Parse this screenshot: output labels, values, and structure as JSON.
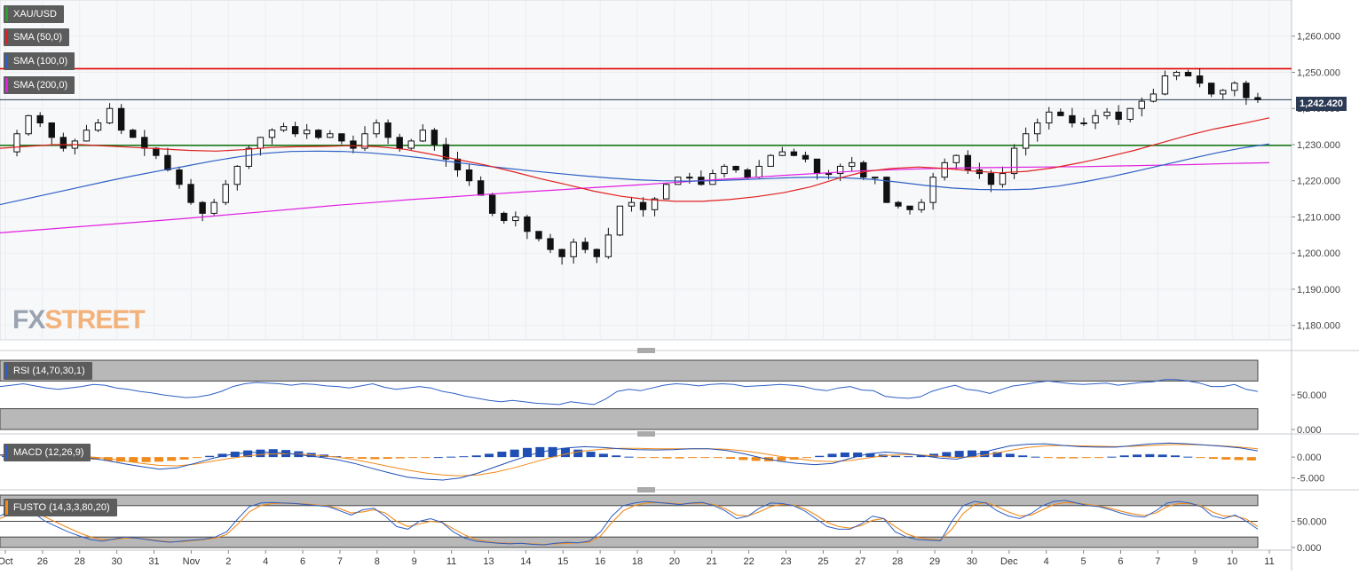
{
  "chart_data": [
    {
      "type": "candlestick",
      "symbol": "XAU/USD",
      "last_price_label": "1,242.420",
      "last_price": 1242.42,
      "ylim": [
        1176,
        1270
      ],
      "y_ticks": [
        "1,260.000",
        "1,250.000",
        "1,240.000",
        "1,230.000",
        "1,220.000",
        "1,210.000",
        "1,200.000",
        "1,190.000",
        "1,180.000"
      ],
      "y_tick_values": [
        1260,
        1250,
        1240,
        1230,
        1220,
        1210,
        1200,
        1190,
        1180
      ],
      "x_tick_labels": [
        "Oct",
        "26",
        "28",
        "30",
        "31",
        "Nov",
        "2",
        "4",
        "6",
        "7",
        "8",
        "9",
        "11",
        "13",
        "14",
        "15",
        "16",
        "18",
        "20",
        "21",
        "22",
        "23",
        "25",
        "27",
        "28",
        "29",
        "30",
        "Dec",
        "4",
        "5",
        "6",
        "7",
        "9",
        "10",
        "11"
      ],
      "indicators": [
        {
          "name": "SMA (50,0)",
          "color": "#e02020"
        },
        {
          "name": "SMA (100,0)",
          "color": "#2d5fc4"
        },
        {
          "name": "SMA (200,0)",
          "color": "#e020e0"
        }
      ],
      "horizontal_levels": [
        {
          "value": 1251,
          "color": "#e00000"
        },
        {
          "value": 1229.8,
          "color": "#1a7a1a"
        }
      ],
      "price_path": [
        1228,
        1233,
        1238,
        1236,
        1232,
        1229,
        1231,
        1234,
        1236,
        1240,
        1234,
        1232,
        1229,
        1227,
        1223,
        1219,
        1214,
        1211,
        1214,
        1219,
        1224,
        1229,
        1232,
        1234,
        1235,
        1233,
        1234,
        1232,
        1233,
        1231,
        1229,
        1233,
        1236,
        1232,
        1229,
        1231,
        1234,
        1230,
        1226,
        1223,
        1220,
        1216,
        1211,
        1209,
        1210,
        1206,
        1204,
        1201,
        1199,
        1203,
        1201,
        1199,
        1205,
        1213,
        1214,
        1212,
        1215,
        1219,
        1221,
        1221,
        1219,
        1222,
        1224,
        1223,
        1221,
        1224,
        1227,
        1228,
        1227,
        1226,
        1222,
        1222,
        1224,
        1225,
        1221,
        1221,
        1214,
        1213,
        1212,
        1214,
        1221,
        1225,
        1227,
        1223,
        1222,
        1219,
        1222,
        1229,
        1233,
        1236,
        1239,
        1238,
        1236,
        1236,
        1238,
        1239,
        1237,
        1240,
        1242,
        1244,
        1249,
        1250,
        1249,
        1247,
        1244,
        1245,
        1247,
        1243,
        1242.4
      ],
      "sma50": [
        1229,
        1229.5,
        1230,
        1230,
        1229.6,
        1229.2,
        1228.8,
        1228.4,
        1228.2,
        1228.6,
        1229.2,
        1229.4,
        1229.5,
        1229.7,
        1229.4,
        1228.7,
        1227.3,
        1225.8,
        1224.3,
        1222.5,
        1220.6,
        1218.9,
        1217.1,
        1215.7,
        1214.8,
        1214.3,
        1214.3,
        1214.8,
        1215.6,
        1216.7,
        1218.3,
        1220.6,
        1222.5,
        1223.4,
        1223.8,
        1223.4,
        1222.7,
        1222.2,
        1222.6,
        1223.6,
        1225.0,
        1226.6,
        1228.4,
        1230.5,
        1232.6,
        1234.4,
        1235.8,
        1237.4
      ],
      "sma100": [
        1213.4,
        1215,
        1216.6,
        1218.2,
        1219.8,
        1221.3,
        1222.7,
        1224,
        1225.4,
        1226.6,
        1227.6,
        1228.1,
        1228.2,
        1228.1,
        1227.7,
        1227.1,
        1226.3,
        1225.3,
        1224.4,
        1223.6,
        1222.8,
        1222.1,
        1221.4,
        1220.8,
        1220.3,
        1220,
        1219.9,
        1220,
        1220.3,
        1220.6,
        1220.9,
        1221,
        1220.8,
        1220.4,
        1219.6,
        1218.7,
        1218,
        1217.6,
        1217.5,
        1217.7,
        1218.5,
        1219.7,
        1221.1,
        1222.7,
        1224.4,
        1226.1,
        1227.7,
        1229.1,
        1230.2
      ],
      "sma200": [
        1205.6,
        1206.4,
        1207.2,
        1208,
        1208.8,
        1209.6,
        1210.5,
        1211.4,
        1212.3,
        1213.2,
        1214,
        1214.8,
        1215.5,
        1216.2,
        1216.9,
        1217.5,
        1218.2,
        1218.8,
        1219.5,
        1220.2,
        1220.8,
        1221.5,
        1222.1,
        1222.7,
        1223.1,
        1223.4,
        1223.6,
        1223.7,
        1223.8,
        1223.9,
        1224.1,
        1224.3,
        1224.5,
        1224.8,
        1225
      ],
      "watermark": {
        "fx": "FX",
        "street": "STREET"
      }
    },
    {
      "type": "line",
      "name": "RSI (14,70,30,1)",
      "color": "#2d5fc4",
      "ylim": [
        0,
        100
      ],
      "y_ticks": [
        "50.000",
        "0.000"
      ],
      "y_tick_values": [
        50,
        0
      ],
      "values": [
        62,
        64,
        66,
        63,
        60,
        58,
        60,
        62,
        65,
        64,
        60,
        58,
        55,
        53,
        50,
        48,
        46,
        47,
        50,
        55,
        62,
        66,
        68,
        67,
        66,
        64,
        66,
        65,
        63,
        62,
        60,
        63,
        66,
        61,
        58,
        60,
        62,
        60,
        55,
        52,
        48,
        45,
        42,
        40,
        42,
        40,
        38,
        37,
        36,
        40,
        38,
        36,
        44,
        55,
        58,
        56,
        60,
        64,
        66,
        65,
        63,
        65,
        66,
        65,
        62,
        63,
        64,
        65,
        64,
        62,
        58,
        56,
        60,
        62,
        57,
        56,
        48,
        46,
        45,
        47,
        55,
        60,
        64,
        58,
        56,
        52,
        58,
        63,
        65,
        68,
        70,
        68,
        66,
        65,
        66,
        67,
        64,
        66,
        68,
        69,
        72,
        72,
        70,
        67,
        62,
        62,
        65,
        58,
        55
      ],
      "bands": [
        70,
        30
      ]
    },
    {
      "type": "bar_line",
      "name": "MACD (12,26,9)",
      "ylim": [
        -7,
        4.5
      ],
      "y_ticks": [
        "0.000",
        "-5.000"
      ],
      "y_tick_values": [
        0,
        -5
      ],
      "histogram": [
        0.3,
        0.5,
        0.6,
        0.4,
        0.2,
        0,
        -0.3,
        -0.6,
        -0.9,
        -1.1,
        -1.2,
        -1.2,
        -1.1,
        -0.9,
        -0.6,
        -0.2,
        0.3,
        0.8,
        1.3,
        1.6,
        1.8,
        1.9,
        1.7,
        1.4,
        1.0,
        0.6,
        0.2,
        -0.2,
        -0.4,
        -0.5,
        -0.4,
        -0.3,
        -0.2,
        -0.1,
        0,
        0.1,
        0.2,
        0.4,
        0.8,
        1.3,
        1.8,
        2.2,
        2.4,
        2.4,
        2.2,
        1.8,
        1.3,
        0.8,
        0.4,
        0.1,
        -0.1,
        -0.2,
        -0.3,
        -0.3,
        -0.2,
        -0.1,
        -0.2,
        -0.4,
        -0.7,
        -0.9,
        -1.0,
        -0.9,
        -0.6,
        -0.2,
        0.3,
        0.8,
        1.1,
        1.1,
        0.9,
        0.6,
        0.3,
        0.2,
        0.4,
        0.8,
        1.2,
        1.5,
        1.6,
        1.5,
        1.2,
        0.8,
        0.4,
        0.1,
        -0.1,
        -0.3,
        -0.3,
        -0.2,
        -0.1,
        0.1,
        0.4,
        0.6,
        0.7,
        0.6,
        0.4,
        0.1,
        -0.2,
        -0.4,
        -0.6,
        -0.7,
        -0.8
      ],
      "macd": [
        0.5,
        0.8,
        1.0,
        0.8,
        0.4,
        -0.2,
        -0.8,
        -1.6,
        -2.3,
        -2.9,
        -2.6,
        -1.5,
        -0.3,
        0.6,
        1.1,
        1.2,
        1.0,
        0.5,
        0,
        -0.6,
        -1.5,
        -2.7,
        -3.8,
        -4.8,
        -5.3,
        -5.5,
        -5.0,
        -3.8,
        -2.3,
        -0.8,
        0.6,
        1.6,
        2.2,
        2.5,
        2.3,
        2.0,
        1.8,
        1.7,
        1.8,
        2.0,
        2.0,
        1.6,
        0.8,
        -0.2,
        -1.0,
        -1.5,
        -1.8,
        -1.5,
        -0.3,
        0.8,
        1.2,
        0.9,
        0.4,
        -0.2,
        -0.5,
        0.5,
        1.7,
        2.7,
        3.1,
        3.2,
        2.8,
        2.5,
        2.4,
        2.4,
        2.8,
        3.2,
        3.4,
        3.2,
        2.9,
        2.6,
        2.2,
        1.5
      ],
      "signal": [
        0.4,
        0.6,
        0.7,
        0.6,
        0.4,
        0.1,
        -0.3,
        -0.9,
        -1.5,
        -2.0,
        -2.1,
        -1.7,
        -1.0,
        -0.3,
        0.3,
        0.7,
        0.8,
        0.7,
        0.4,
        0,
        -0.6,
        -1.4,
        -2.3,
        -3.1,
        -3.8,
        -4.3,
        -4.5,
        -4.3,
        -3.6,
        -2.6,
        -1.4,
        -0.2,
        0.8,
        1.5,
        1.9,
        2.1,
        2.1,
        2.0,
        2.0,
        2.0,
        2.0,
        1.9,
        1.5,
        0.9,
        0.2,
        -0.4,
        -0.9,
        -1.1,
        -0.8,
        -0.2,
        0.4,
        0.6,
        0.5,
        0.2,
        -0.1,
        0.1,
        0.8,
        1.6,
        2.3,
        2.7,
        2.8,
        2.7,
        2.6,
        2.5,
        2.6,
        2.8,
        3.0,
        3.0,
        2.9,
        2.7,
        2.4,
        2.0
      ],
      "up_color": "#1f4fb4",
      "down_color": "#f08a1a"
    },
    {
      "type": "line",
      "name": "FUSTO (14,3,3,80,20)",
      "ylim": [
        0,
        100
      ],
      "y_ticks": [
        "50.000",
        "0.000"
      ],
      "y_tick_values": [
        50,
        0
      ],
      "bands": [
        80,
        20
      ],
      "k_color": "#2d5fc4",
      "d_color": "#f08a1a",
      "k": [
        60,
        72,
        78,
        65,
        50,
        40,
        30,
        22,
        15,
        12,
        16,
        20,
        18,
        15,
        12,
        10,
        12,
        14,
        16,
        20,
        30,
        55,
        78,
        85,
        86,
        85,
        84,
        82,
        80,
        78,
        70,
        62,
        72,
        75,
        60,
        40,
        35,
        50,
        55,
        48,
        30,
        18,
        12,
        10,
        8,
        7,
        8,
        6,
        5,
        8,
        10,
        9,
        12,
        30,
        60,
        80,
        85,
        88,
        86,
        84,
        82,
        85,
        86,
        80,
        70,
        55,
        60,
        75,
        85,
        84,
        80,
        70,
        55,
        40,
        35,
        35,
        45,
        60,
        55,
        30,
        20,
        15,
        14,
        13,
        50,
        80,
        88,
        85,
        70,
        60,
        55,
        65,
        80,
        88,
        90,
        85,
        80,
        78,
        72,
        65,
        60,
        58,
        70,
        85,
        88,
        85,
        78,
        60,
        55,
        62,
        50,
        35
      ],
      "d": [
        55,
        65,
        72,
        68,
        58,
        48,
        38,
        28,
        20,
        15,
        15,
        18,
        18,
        16,
        13,
        11,
        11,
        13,
        15,
        18,
        25,
        45,
        68,
        80,
        84,
        85,
        84,
        83,
        81,
        79,
        74,
        66,
        68,
        72,
        66,
        50,
        40,
        45,
        50,
        48,
        36,
        24,
        15,
        11,
        9,
        8,
        8,
        7,
        6,
        7,
        8,
        9,
        10,
        22,
        48,
        70,
        80,
        85,
        86,
        85,
        83,
        84,
        85,
        82,
        74,
        62,
        60,
        68,
        78,
        82,
        81,
        74,
        62,
        48,
        40,
        37,
        42,
        52,
        55,
        40,
        26,
        19,
        16,
        14,
        35,
        65,
        82,
        86,
        78,
        68,
        60,
        62,
        72,
        82,
        86,
        85,
        82,
        79,
        75,
        69,
        64,
        61,
        66,
        78,
        84,
        84,
        80,
        68,
        60,
        60,
        54,
        40
      ]
    }
  ]
}
